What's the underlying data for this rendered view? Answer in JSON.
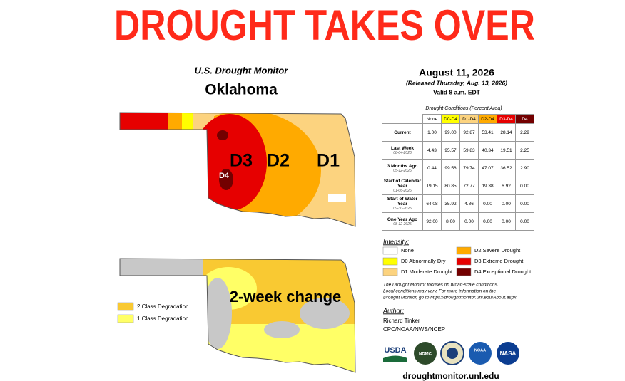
{
  "header": {
    "title": "DROUGHT TAKES OVER"
  },
  "map": {
    "source": "U.S. Drought Monitor",
    "state": "Oklahoma",
    "labels": [
      "D3",
      "D2",
      "D1",
      "D4"
    ]
  },
  "change_map": {
    "label": "2-week change",
    "legend": [
      "2 Class Degradation",
      "1 Class Degradation"
    ]
  },
  "report": {
    "date": "August 11, 2026",
    "released": "(Released Thursday, Aug. 13, 2026)",
    "valid": "Valid 8 a.m. EDT"
  },
  "table": {
    "caption": "Drought Conditions (Percent Area)",
    "columns": [
      "None",
      "D0-D4",
      "D1-D4",
      "D2-D4",
      "D3-D4",
      "D4"
    ],
    "rows": [
      {
        "label": "Current",
        "values": [
          "1.00",
          "99.00",
          "92.87",
          "53.41",
          "28.14",
          "2.29"
        ]
      },
      {
        "label": "Last Week",
        "date": "08-04-2026",
        "values": [
          "4.43",
          "95.57",
          "59.83",
          "40.34",
          "19.51",
          "2.25"
        ]
      },
      {
        "label": "3 Months Ago",
        "date": "05-12-2026",
        "values": [
          "0.44",
          "99.56",
          "79.74",
          "47.07",
          "36.52",
          "2.90"
        ]
      },
      {
        "label": "Start of Calendar Year",
        "date": "01-06-2026",
        "values": [
          "19.15",
          "80.85",
          "72.77",
          "19.38",
          "6.92",
          "0.00"
        ]
      },
      {
        "label": "Start of Water Year",
        "date": "09-30-2025",
        "values": [
          "64.08",
          "35.92",
          "4.86",
          "0.00",
          "0.00",
          "0.00"
        ]
      },
      {
        "label": "One Year Ago",
        "date": "08-12-2025",
        "values": [
          "92.00",
          "8.00",
          "0.00",
          "0.00",
          "0.00",
          "0.00"
        ]
      }
    ]
  },
  "intensity": {
    "title": "Intensity:",
    "items": [
      "None",
      "D0 Abnormally Dry",
      "D1 Moderate Drought",
      "D2 Severe Drought",
      "D3 Extreme Drought",
      "D4 Exceptional Drought"
    ]
  },
  "note": [
    "The Drought Monitor focuses on broad-scale conditions.",
    "Local conditions may vary. For more information on the",
    "Drought Monitor, go to https://droughtmonitor.unl.edu/About.aspx"
  ],
  "author": {
    "title": "Author:",
    "name": "Richard Tinker",
    "org": "CPC/NOAA/NWS/NCEP"
  },
  "logos": [
    "USDA",
    "NDMC",
    "NOAA",
    "NASA"
  ],
  "footer": "droughtmonitor.unl.edu"
}
